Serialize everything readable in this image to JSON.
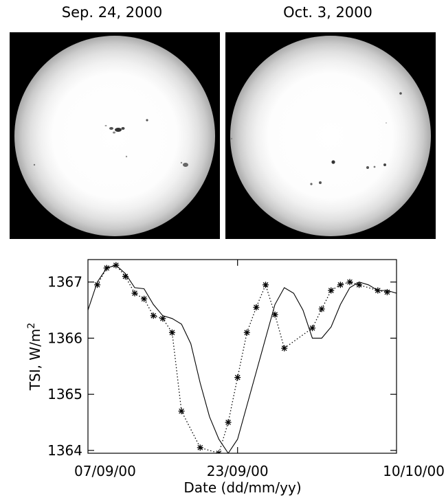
{
  "images": [
    {
      "title": "Sep. 24, 2000"
    },
    {
      "title": "Oct. 3, 2000"
    }
  ],
  "chart_data": {
    "type": "line",
    "title": "",
    "xlabel": "Date (dd/mm/yy)",
    "ylabel": "TSI, W/m",
    "ylabel_superscript": "2",
    "xlim": [
      "2000-09-07",
      "2000-10-10"
    ],
    "ylim": [
      1363.95,
      1367.4
    ],
    "x_ticks": [
      {
        "date": "2000-09-07",
        "label": "07/09/00"
      },
      {
        "date": "2000-09-23",
        "label": "23/09/00"
      },
      {
        "date": "2000-10-10",
        "label": "10/10/00"
      }
    ],
    "y_ticks": [
      1364,
      1365,
      1366,
      1367
    ],
    "grid": false,
    "legend": "none",
    "series": [
      {
        "style": "solid line",
        "x": [
          "2000-09-07",
          "2000-09-08",
          "2000-09-09",
          "2000-09-10",
          "2000-09-11",
          "2000-09-12",
          "2000-09-13",
          "2000-09-14",
          "2000-09-15",
          "2000-09-16",
          "2000-09-17",
          "2000-09-18",
          "2000-09-19",
          "2000-09-20",
          "2000-09-21",
          "2000-09-22",
          "2000-09-23",
          "2000-09-24",
          "2000-09-25",
          "2000-09-26",
          "2000-09-27",
          "2000-09-28",
          "2000-09-29",
          "2000-09-30",
          "2000-10-01",
          "2000-10-02",
          "2000-10-03",
          "2000-10-04",
          "2000-10-05",
          "2000-10-06",
          "2000-10-07",
          "2000-10-08",
          "2000-10-09",
          "2000-10-10"
        ],
        "values": [
          1366.5,
          1367.0,
          1367.25,
          1367.3,
          1367.15,
          1366.9,
          1366.88,
          1366.6,
          1366.4,
          1366.35,
          1366.25,
          1365.9,
          1365.2,
          1364.6,
          1364.2,
          1363.95,
          1364.2,
          1364.8,
          1365.4,
          1366.0,
          1366.6,
          1366.9,
          1366.8,
          1366.5,
          1366.0,
          1366.0,
          1366.2,
          1366.6,
          1366.9,
          1367.0,
          1366.95,
          1366.85,
          1366.85,
          1366.8
        ]
      },
      {
        "style": "dotted line with asterisk markers",
        "x": [
          "2000-09-08",
          "2000-09-09",
          "2000-09-10",
          "2000-09-11",
          "2000-09-12",
          "2000-09-13",
          "2000-09-14",
          "2000-09-15",
          "2000-09-16",
          "2000-09-17",
          "2000-09-19",
          "2000-09-21",
          "2000-09-22",
          "2000-09-23",
          "2000-09-24",
          "2000-09-25",
          "2000-09-26",
          "2000-09-27",
          "2000-09-28",
          "2000-10-01",
          "2000-10-02",
          "2000-10-03",
          "2000-10-04",
          "2000-10-05",
          "2000-10-06",
          "2000-10-08",
          "2000-10-09"
        ],
        "values": [
          1366.95,
          1367.25,
          1367.3,
          1367.1,
          1366.8,
          1366.7,
          1366.4,
          1366.35,
          1366.1,
          1364.7,
          1364.05,
          1363.95,
          1364.5,
          1365.3,
          1366.1,
          1366.55,
          1366.95,
          1366.42,
          1365.82,
          1366.18,
          1366.52,
          1366.85,
          1366.95,
          1367.0,
          1366.95,
          1366.85,
          1366.82
        ]
      }
    ]
  }
}
